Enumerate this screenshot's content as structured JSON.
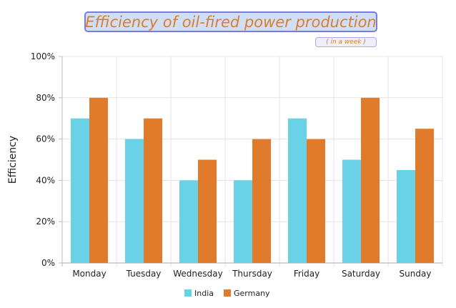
{
  "chart_data": {
    "type": "bar",
    "title": "Efficiency of oil-fired power production",
    "subtitle": "( in a week )",
    "ylabel": "Efficiency",
    "xlabel": "",
    "categories": [
      "Monday",
      "Tuesday",
      "Wednesday",
      "Thursday",
      "Friday",
      "Saturday",
      "Sunday"
    ],
    "series": [
      {
        "name": "India",
        "color": "#6ad2e6",
        "values": [
          70,
          60,
          40,
          40,
          70,
          50,
          45
        ]
      },
      {
        "name": "Germany",
        "color": "#e07b2b",
        "values": [
          80,
          70,
          50,
          60,
          60,
          80,
          65
        ]
      }
    ],
    "ylim": [
      0,
      100
    ],
    "yticks": [
      "0%",
      "20%",
      "40%",
      "60%",
      "80%",
      "100%"
    ],
    "grid": true,
    "legend_position": "bottom"
  }
}
